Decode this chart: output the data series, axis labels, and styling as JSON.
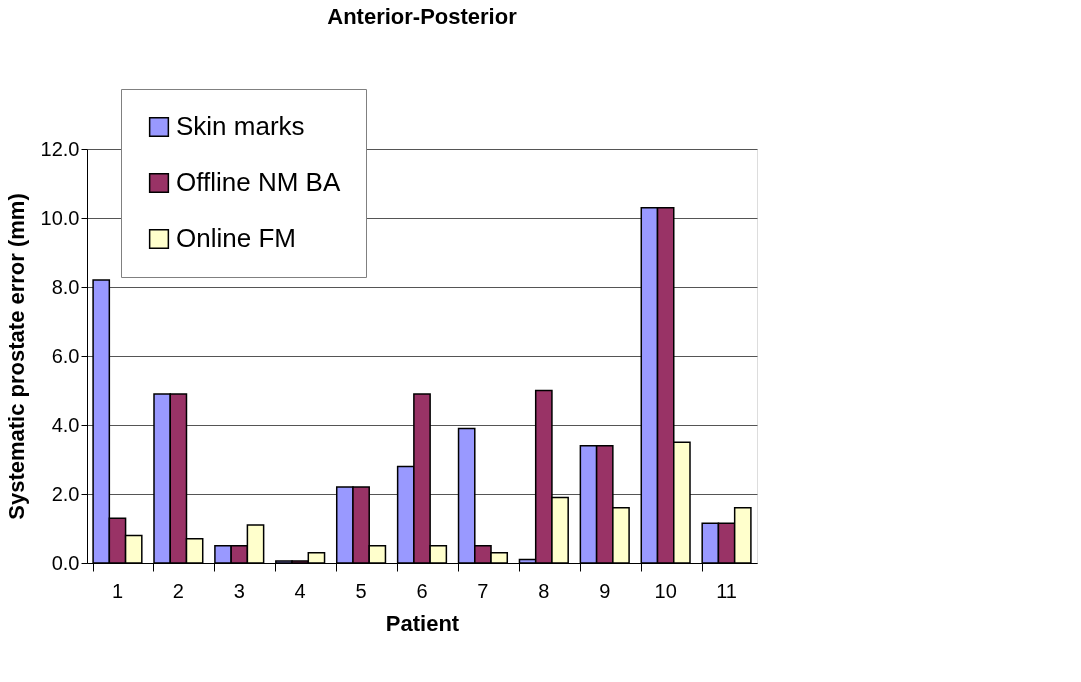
{
  "chart_data": {
    "type": "bar",
    "title": "Anterior-Posterior",
    "xlabel": "Patient",
    "ylabel": "Systematic prostate error (mm)",
    "categories": [
      "1",
      "2",
      "3",
      "4",
      "5",
      "6",
      "7",
      "8",
      "9",
      "10",
      "11"
    ],
    "series": [
      {
        "name": "Skin marks",
        "color": "#9999ff",
        "values": [
          8.2,
          4.9,
          0.5,
          0.06,
          2.2,
          2.8,
          3.9,
          0.1,
          3.4,
          10.3,
          1.15
        ]
      },
      {
        "name": "Offline NM BA",
        "color": "#993366",
        "values": [
          1.3,
          4.9,
          0.5,
          0.06,
          2.2,
          4.9,
          0.5,
          5.0,
          3.4,
          10.3,
          1.15
        ]
      },
      {
        "name": "Online FM",
        "color": "#ffffcc",
        "values": [
          0.8,
          0.7,
          1.1,
          0.3,
          0.5,
          0.5,
          0.3,
          1.9,
          1.6,
          3.5,
          1.6
        ]
      }
    ],
    "ylim": [
      0,
      12
    ],
    "yticks": [
      {
        "value": 0,
        "label": "0.0"
      },
      {
        "value": 2,
        "label": "2.0"
      },
      {
        "value": 4,
        "label": "4.0"
      },
      {
        "value": 6,
        "label": "6.0"
      },
      {
        "value": 8,
        "label": "8.0"
      },
      {
        "value": 10,
        "label": "10.0"
      },
      {
        "value": 12,
        "label": "12.0"
      }
    ],
    "grid": "y",
    "legend": "top left"
  }
}
